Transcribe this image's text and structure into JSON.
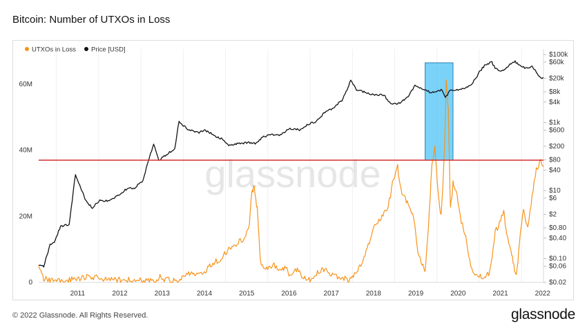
{
  "title": "Bitcoin: Number of UTXOs in Loss",
  "footer": {
    "copyright": "© 2022 Glassnode. All Rights Reserved.",
    "brand": "glassnode"
  },
  "watermark": "glassnode",
  "chart_data": {
    "type": "line",
    "title": "Bitcoin: Number of UTXOs in Loss",
    "legend": {
      "position": "top-left",
      "entries": [
        "UTXOs in Loss",
        "Price [USD]"
      ]
    },
    "grid": true,
    "x_axis": {
      "ticks": [
        "2011",
        "2012",
        "2013",
        "2014",
        "2015",
        "2016",
        "2017",
        "2018",
        "2019",
        "2020",
        "2021",
        "2022"
      ],
      "range": [
        2010.58,
        2022.52
      ]
    },
    "y_left": {
      "ticks": [
        "0",
        "20M",
        "40M",
        "60M"
      ],
      "range": [
        0,
        69000000
      ]
    },
    "y_right": {
      "scale": "log",
      "ticks": [
        "$100k",
        "$60k",
        "$20k",
        "$8k",
        "$4k",
        "$1k",
        "$600",
        "$200",
        "$80",
        "$40",
        "$10",
        "$6",
        "$2",
        "$0.80",
        "$0.40",
        "$0.10",
        "$0.06",
        "$0.02"
      ],
      "tick_values": [
        100000,
        60000,
        20000,
        8000,
        4000,
        1000,
        600,
        200,
        80,
        40,
        10,
        6,
        2,
        0.8,
        0.4,
        0.1,
        0.06,
        0.02
      ]
    },
    "series": [
      {
        "name": "UTXOs in Loss",
        "color": "#f7931a",
        "axis": "left",
        "points": [
          [
            2010.58,
            4000000
          ],
          [
            2010.7,
            1200000
          ],
          [
            2010.9,
            400000
          ],
          [
            2011.2,
            300000
          ],
          [
            2011.5,
            1200000
          ],
          [
            2011.8,
            1600000
          ],
          [
            2012.0,
            1400000
          ],
          [
            2012.3,
            900000
          ],
          [
            2012.6,
            600000
          ],
          [
            2012.9,
            700000
          ],
          [
            2013.2,
            200000
          ],
          [
            2013.35,
            700000
          ],
          [
            2013.45,
            1800000
          ],
          [
            2013.55,
            1100000
          ],
          [
            2013.7,
            500000
          ],
          [
            2013.9,
            300000
          ],
          [
            2014.1,
            3200000
          ],
          [
            2014.3,
            2200000
          ],
          [
            2014.5,
            3500000
          ],
          [
            2014.7,
            5500000
          ],
          [
            2014.9,
            7500000
          ],
          [
            2015.1,
            10500000
          ],
          [
            2015.3,
            12000000
          ],
          [
            2015.45,
            13500000
          ],
          [
            2015.55,
            16000000
          ],
          [
            2015.62,
            27000000
          ],
          [
            2015.68,
            29000000
          ],
          [
            2015.75,
            22000000
          ],
          [
            2015.82,
            6500000
          ],
          [
            2015.95,
            3800000
          ],
          [
            2016.1,
            5500000
          ],
          [
            2016.25,
            4000000
          ],
          [
            2016.4,
            4500000
          ],
          [
            2016.55,
            2000000
          ],
          [
            2016.7,
            3800000
          ],
          [
            2016.85,
            1200000
          ],
          [
            2017.0,
            1000000
          ],
          [
            2017.2,
            3500000
          ],
          [
            2017.35,
            4000000
          ],
          [
            2017.5,
            2500000
          ],
          [
            2017.7,
            1500000
          ],
          [
            2017.9,
            800000
          ],
          [
            2018.1,
            3000000
          ],
          [
            2018.25,
            6000000
          ],
          [
            2018.4,
            12000000
          ],
          [
            2018.55,
            18000000
          ],
          [
            2018.7,
            20000000
          ],
          [
            2018.85,
            23000000
          ],
          [
            2018.95,
            30000000
          ],
          [
            2019.07,
            35000000
          ],
          [
            2019.15,
            28000000
          ],
          [
            2019.3,
            24000000
          ],
          [
            2019.45,
            20000000
          ],
          [
            2019.55,
            9000000
          ],
          [
            2019.65,
            5000000
          ],
          [
            2019.72,
            4000000
          ],
          [
            2019.8,
            17000000
          ],
          [
            2019.88,
            35000000
          ],
          [
            2019.95,
            41000000
          ],
          [
            2020.02,
            28000000
          ],
          [
            2020.1,
            20000000
          ],
          [
            2020.18,
            40000000
          ],
          [
            2020.22,
            62000000
          ],
          [
            2020.27,
            52000000
          ],
          [
            2020.32,
            22000000
          ],
          [
            2020.38,
            30000000
          ],
          [
            2020.45,
            28000000
          ],
          [
            2020.55,
            20000000
          ],
          [
            2020.68,
            14000000
          ],
          [
            2020.8,
            4500000
          ],
          [
            2020.95,
            2000000
          ],
          [
            2021.1,
            1200000
          ],
          [
            2021.25,
            3000000
          ],
          [
            2021.38,
            15000000
          ],
          [
            2021.48,
            18000000
          ],
          [
            2021.58,
            22000000
          ],
          [
            2021.65,
            14000000
          ],
          [
            2021.75,
            10000000
          ],
          [
            2021.82,
            5000000
          ],
          [
            2021.88,
            1500000
          ],
          [
            2021.95,
            12000000
          ],
          [
            2022.05,
            22000000
          ],
          [
            2022.15,
            16000000
          ],
          [
            2022.25,
            26000000
          ],
          [
            2022.35,
            34000000
          ],
          [
            2022.45,
            37000000
          ],
          [
            2022.52,
            35000000
          ]
        ]
      },
      {
        "name": "Price [USD]",
        "color": "#111111",
        "axis": "right",
        "points": [
          [
            2010.58,
            0.06
          ],
          [
            2010.7,
            0.06
          ],
          [
            2010.85,
            0.25
          ],
          [
            2010.95,
            0.3
          ],
          [
            2011.1,
            0.9
          ],
          [
            2011.3,
            1
          ],
          [
            2011.45,
            30
          ],
          [
            2011.55,
            14
          ],
          [
            2011.7,
            5
          ],
          [
            2011.85,
            3
          ],
          [
            2012.0,
            5
          ],
          [
            2012.2,
            5
          ],
          [
            2012.45,
            7
          ],
          [
            2012.65,
            11
          ],
          [
            2012.85,
            12
          ],
          [
            2013.05,
            20
          ],
          [
            2013.2,
            100
          ],
          [
            2013.3,
            230
          ],
          [
            2013.42,
            80
          ],
          [
            2013.6,
            110
          ],
          [
            2013.8,
            180
          ],
          [
            2013.9,
            1100
          ],
          [
            2014.0,
            800
          ],
          [
            2014.15,
            600
          ],
          [
            2014.35,
            500
          ],
          [
            2014.5,
            600
          ],
          [
            2014.7,
            450
          ],
          [
            2014.9,
            330
          ],
          [
            2015.05,
            220
          ],
          [
            2015.3,
            240
          ],
          [
            2015.5,
            260
          ],
          [
            2015.7,
            240
          ],
          [
            2015.85,
            350
          ],
          [
            2016.0,
            430
          ],
          [
            2016.3,
            430
          ],
          [
            2016.5,
            650
          ],
          [
            2016.75,
            620
          ],
          [
            2016.95,
            900
          ],
          [
            2017.15,
            1100
          ],
          [
            2017.35,
            2000
          ],
          [
            2017.55,
            2700
          ],
          [
            2017.75,
            4500
          ],
          [
            2017.9,
            11000
          ],
          [
            2017.96,
            17000
          ],
          [
            2018.1,
            9000
          ],
          [
            2018.3,
            8000
          ],
          [
            2018.5,
            6500
          ],
          [
            2018.75,
            6400
          ],
          [
            2018.9,
            3500
          ],
          [
            2019.1,
            3700
          ],
          [
            2019.3,
            5500
          ],
          [
            2019.48,
            12000
          ],
          [
            2019.7,
            9500
          ],
          [
            2019.85,
            7500
          ],
          [
            2020.0,
            8000
          ],
          [
            2020.12,
            9500
          ],
          [
            2020.2,
            5500
          ],
          [
            2020.32,
            8800
          ],
          [
            2020.55,
            9300
          ],
          [
            2020.75,
            11500
          ],
          [
            2020.9,
            18000
          ],
          [
            2021.0,
            30000
          ],
          [
            2021.15,
            52000
          ],
          [
            2021.3,
            58000
          ],
          [
            2021.4,
            37000
          ],
          [
            2021.55,
            33000
          ],
          [
            2021.7,
            48000
          ],
          [
            2021.85,
            63000
          ],
          [
            2021.95,
            49000
          ],
          [
            2022.1,
            40000
          ],
          [
            2022.25,
            45000
          ],
          [
            2022.35,
            30000
          ],
          [
            2022.45,
            20000
          ],
          [
            2022.52,
            21000
          ]
        ]
      }
    ],
    "annotations": [
      {
        "type": "horizontal-line",
        "color": "#d32f2f",
        "y": 37000000
      },
      {
        "type": "highlight-box",
        "color": "#4fc3f7",
        "x_range": [
          2019.72,
          2020.38
        ],
        "y_range": [
          37000000,
          66500000
        ]
      }
    ]
  }
}
